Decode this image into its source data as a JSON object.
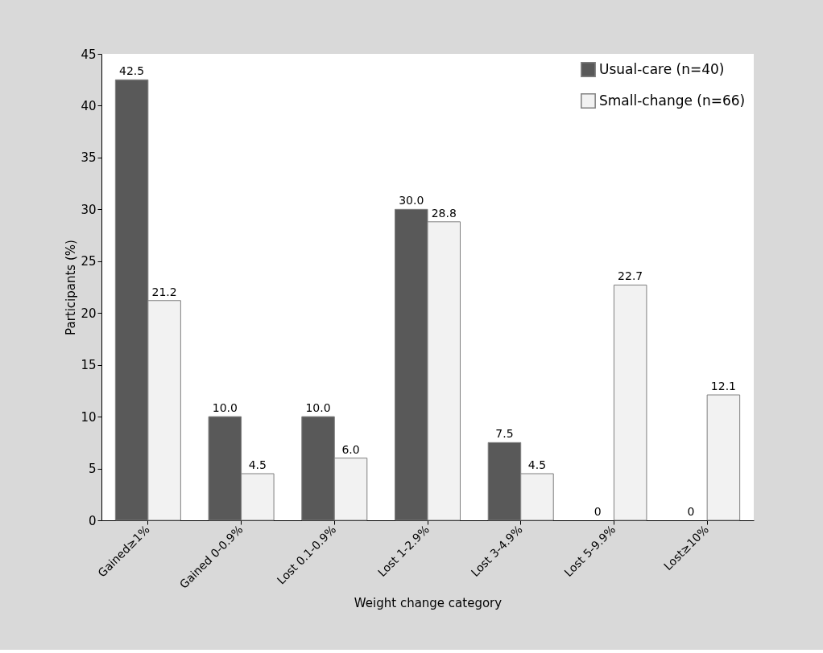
{
  "chart_data": {
    "type": "bar",
    "xlabel": "Weight change category",
    "ylabel": "Participants (%)",
    "categories": [
      "Gained≥1%",
      "Gained 0-0.9%",
      "Lost 0.1-0.9%",
      "Lost 1-2.9%",
      "Lost 3-4.9%",
      "Lost 5-9.9%",
      "Lost≥10%"
    ],
    "series": [
      {
        "name": "Usual-care (n=40)",
        "color": "#595959",
        "values": [
          42.5,
          10.0,
          10.0,
          30.0,
          7.5,
          0,
          0
        ],
        "value_labels": [
          "42.5",
          "10.0",
          "10.0",
          "30.0",
          "7.5",
          "0",
          "0"
        ]
      },
      {
        "name": "Small-change (n=66)",
        "color": "#f2f2f2",
        "values": [
          21.2,
          4.5,
          6.0,
          28.8,
          4.5,
          22.7,
          12.1
        ],
        "value_labels": [
          "21.2",
          "4.5",
          "6.0",
          "28.8",
          "4.5",
          "22.7",
          "12.1"
        ]
      }
    ],
    "ylim": [
      0,
      45
    ],
    "yticks": [
      0,
      5,
      10,
      15,
      20,
      25,
      30,
      35,
      40,
      45
    ],
    "grid": false,
    "legend": "top right"
  }
}
